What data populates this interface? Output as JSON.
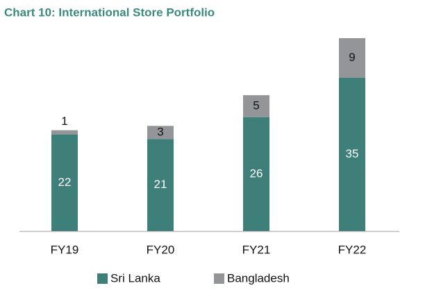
{
  "chart_data": {
    "type": "stacked_bar",
    "title": "Chart 10: International Store Portfolio",
    "categories": [
      "FY19",
      "FY20",
      "FY21",
      "FY22"
    ],
    "series": [
      {
        "name": "Sri Lanka",
        "color": "#3f7f79",
        "values": [
          22,
          21,
          26,
          35
        ]
      },
      {
        "name": "Bangladesh",
        "color": "#939598",
        "values": [
          1,
          3,
          5,
          9
        ]
      }
    ],
    "legend": "bottom"
  }
}
